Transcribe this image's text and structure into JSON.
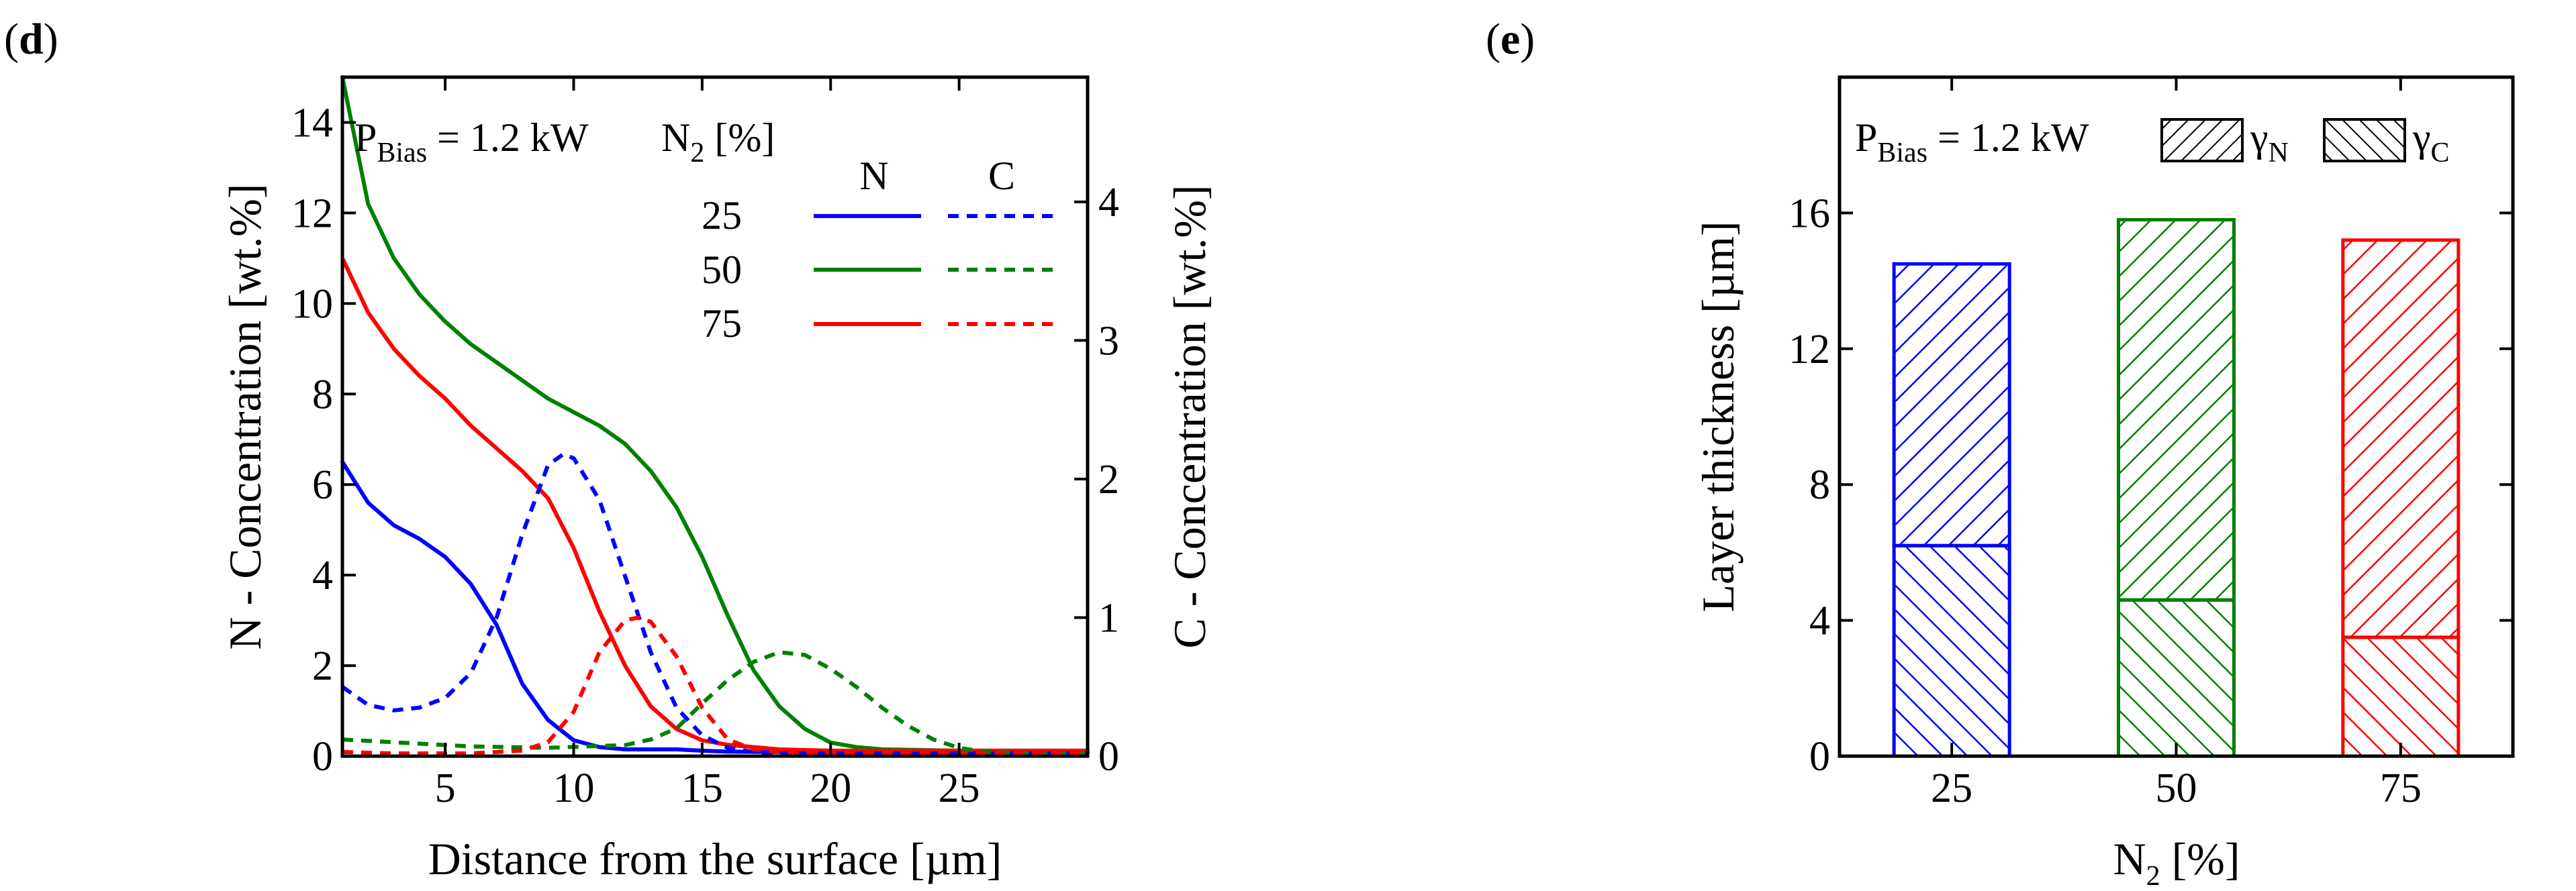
{
  "panels": {
    "d": {
      "label_open": "(",
      "letter": "d",
      "label_close": ")"
    },
    "e": {
      "label_open": "(",
      "letter": "e",
      "label_close": ")"
    }
  },
  "colors": {
    "n25": "#0000ff",
    "n50": "#008000",
    "n75": "#ff0000",
    "axis": "#000000"
  },
  "chart_data": [
    {
      "id": "d",
      "type": "line",
      "xlabel": "Distance from the surface [µm]",
      "ylabel_left": "N - Concentration [wt.%]",
      "ylabel_right": "C - Concentration [wt.%]",
      "xlim": [
        1,
        30
      ],
      "ylim_left": [
        0,
        15
      ],
      "ylim_right": [
        0,
        4.9
      ],
      "xticks": [
        5,
        10,
        15,
        20,
        25
      ],
      "yticks_left": [
        0,
        2,
        4,
        6,
        8,
        10,
        12,
        14
      ],
      "yticks_right": [
        0,
        1,
        2,
        3,
        4
      ],
      "annotation": {
        "prefix": "P",
        "sub": "Bias",
        "suffix": " = 1.2 kW"
      },
      "legend": {
        "title_prefix": "N",
        "title_sub": "2",
        "title_suffix": " [%]",
        "col_n": "N",
        "col_c": "C",
        "rows": [
          "25",
          "50",
          "75"
        ]
      },
      "series": [
        {
          "name": "N 25",
          "axis": "left",
          "style": "solid",
          "color_key": "n25",
          "x": [
            1,
            2,
            3,
            4,
            5,
            6,
            7,
            8,
            9,
            10,
            11,
            12,
            13,
            14,
            15,
            16,
            20,
            25,
            30
          ],
          "y": [
            6.5,
            5.6,
            5.1,
            4.8,
            4.4,
            3.8,
            2.9,
            1.6,
            0.8,
            0.35,
            0.2,
            0.15,
            0.15,
            0.15,
            0.12,
            0.1,
            0.08,
            0.08,
            0.08
          ]
        },
        {
          "name": "N 50",
          "axis": "left",
          "style": "solid",
          "color_key": "n50",
          "x": [
            1,
            2,
            3,
            4,
            5,
            6,
            7,
            8,
            9,
            10,
            11,
            12,
            13,
            14,
            15,
            16,
            17,
            18,
            19,
            20,
            21,
            22,
            25,
            30
          ],
          "y": [
            15.0,
            12.2,
            11.0,
            10.2,
            9.6,
            9.1,
            8.7,
            8.3,
            7.9,
            7.6,
            7.3,
            6.9,
            6.3,
            5.5,
            4.4,
            3.1,
            1.9,
            1.1,
            0.6,
            0.3,
            0.2,
            0.15,
            0.12,
            0.12
          ]
        },
        {
          "name": "N 75",
          "axis": "left",
          "style": "solid",
          "color_key": "n75",
          "x": [
            1,
            2,
            3,
            4,
            5,
            6,
            7,
            8,
            9,
            10,
            11,
            12,
            13,
            14,
            15,
            16,
            17,
            18,
            20,
            25,
            30
          ],
          "y": [
            11.0,
            9.8,
            9.0,
            8.4,
            7.9,
            7.3,
            6.8,
            6.3,
            5.7,
            4.6,
            3.2,
            2.0,
            1.1,
            0.6,
            0.35,
            0.25,
            0.2,
            0.15,
            0.12,
            0.12,
            0.12
          ]
        },
        {
          "name": "C 25",
          "axis": "right",
          "style": "dashed",
          "color_key": "n25",
          "x": [
            1,
            2,
            3,
            4,
            5,
            6,
            7,
            8,
            9,
            9.6,
            10,
            11,
            12,
            13,
            14,
            15,
            16,
            17,
            18,
            20,
            25,
            30
          ],
          "y": [
            0.5,
            0.37,
            0.33,
            0.35,
            0.42,
            0.6,
            1.0,
            1.6,
            2.1,
            2.18,
            2.15,
            1.85,
            1.3,
            0.75,
            0.35,
            0.15,
            0.06,
            0.03,
            0.02,
            0.02,
            0.02,
            0.02
          ]
        },
        {
          "name": "C 50",
          "axis": "right",
          "style": "dashed",
          "color_key": "n50",
          "x": [
            1,
            3,
            6,
            9,
            12,
            13,
            14,
            15,
            16,
            17,
            18,
            19,
            20,
            21,
            22,
            23,
            24,
            25,
            26,
            28,
            30
          ],
          "y": [
            0.12,
            0.1,
            0.07,
            0.06,
            0.08,
            0.12,
            0.2,
            0.38,
            0.55,
            0.68,
            0.75,
            0.73,
            0.63,
            0.5,
            0.35,
            0.22,
            0.12,
            0.06,
            0.03,
            0.02,
            0.02
          ]
        },
        {
          "name": "C 75",
          "axis": "right",
          "style": "dashed",
          "color_key": "n75",
          "x": [
            1,
            3,
            6,
            8,
            9,
            10,
            11,
            12,
            12.5,
            13,
            14,
            15,
            16,
            17,
            18,
            20,
            25,
            30
          ],
          "y": [
            0.03,
            0.02,
            0.02,
            0.04,
            0.1,
            0.32,
            0.75,
            0.98,
            1.0,
            0.97,
            0.72,
            0.35,
            0.12,
            0.05,
            0.03,
            0.02,
            0.02,
            0.02
          ]
        }
      ]
    },
    {
      "id": "e",
      "type": "bar",
      "xlabel_prefix": "N",
      "xlabel_sub": "2",
      "xlabel_suffix": " [%]",
      "ylabel": "Layer thickness [µm]",
      "ylim": [
        0,
        20
      ],
      "yticks": [
        0,
        4,
        8,
        12,
        16
      ],
      "categories": [
        "25",
        "50",
        "75"
      ],
      "annotation": {
        "prefix": "P",
        "sub": "Bias",
        "suffix": " = 1.2 kW"
      },
      "legend": [
        {
          "prefix": "γ",
          "sub": "N",
          "hatch": "forward"
        },
        {
          "prefix": "γ",
          "sub": "C",
          "hatch": "back"
        }
      ],
      "series": [
        {
          "name": "γN",
          "hatch": "forward",
          "values": [
            8.3,
            11.2,
            11.7
          ]
        },
        {
          "name": "γC",
          "hatch": "back",
          "values": [
            6.2,
            4.6,
            3.5
          ]
        }
      ],
      "totals": [
        14.5,
        15.8,
        15.2
      ],
      "bar_color_keys": [
        "n25",
        "n50",
        "n75"
      ]
    }
  ]
}
